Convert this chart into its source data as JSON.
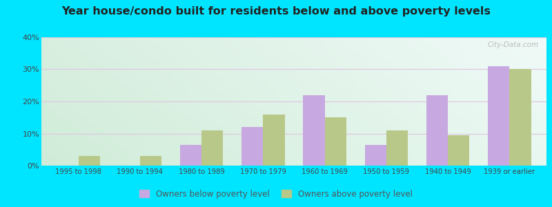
{
  "categories": [
    "1995 to 1998",
    "1990 to 1994",
    "1980 to 1989",
    "1970 to 1979",
    "1960 to 1969",
    "1950 to 1959",
    "1940 to 1949",
    "1939 or earlier"
  ],
  "below_poverty": [
    0,
    0,
    6.5,
    12,
    22,
    6.5,
    22,
    31
  ],
  "above_poverty": [
    3,
    3,
    11,
    16,
    15,
    11,
    9.5,
    30
  ],
  "below_color": "#c8a8e0",
  "above_color": "#b8c888",
  "title": "Year house/condo built for residents below and above poverty levels",
  "title_fontsize": 11.5,
  "legend_below": "Owners below poverty level",
  "legend_above": "Owners above poverty level",
  "ylim": [
    0,
    40
  ],
  "yticks": [
    0,
    10,
    20,
    30,
    40
  ],
  "ytick_labels": [
    "0%",
    "10%",
    "20%",
    "30%",
    "40%"
  ],
  "bar_width": 0.35,
  "bg_tl": "#d8efe0",
  "bg_tr": "#f0faf8",
  "bg_bl": "#d0ecd8",
  "bg_br": "#e8f8f0",
  "outer_bg": "#00e5ff",
  "grid_color": "#e0c8e0",
  "watermark": "City-Data.com",
  "tick_color": "#444444",
  "title_color": "#222222"
}
